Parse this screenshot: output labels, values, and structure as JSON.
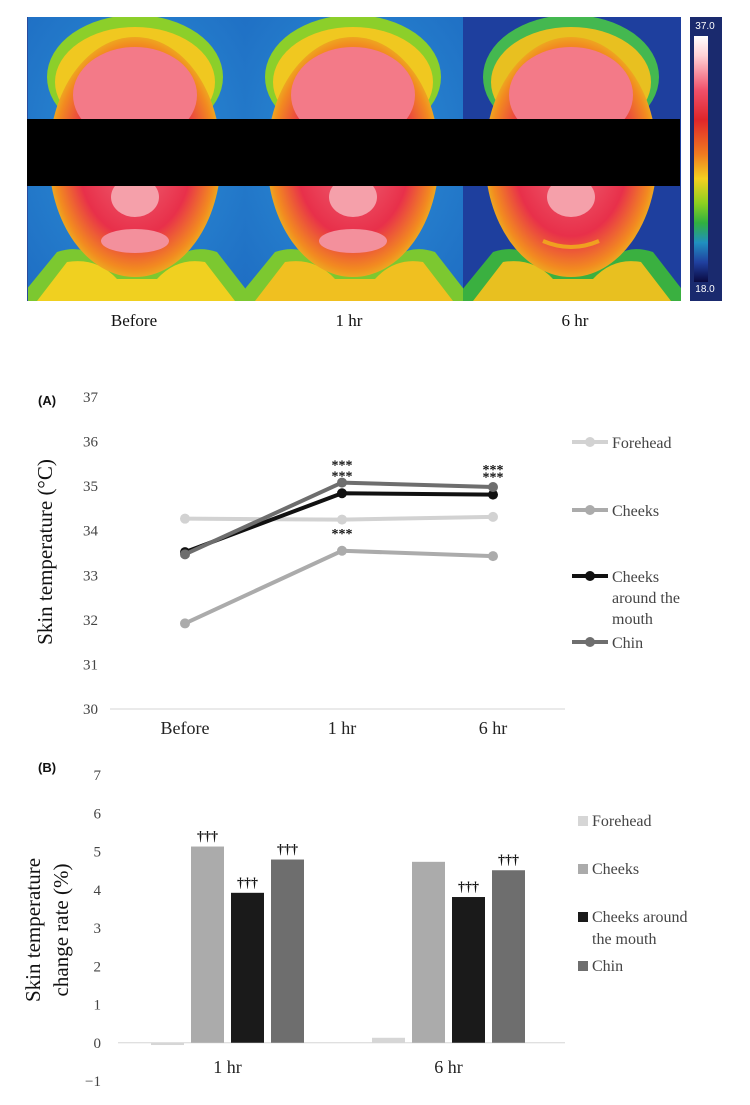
{
  "thermal_images": {
    "labels": [
      "Before",
      "1 hr",
      "6 hr"
    ],
    "scale_max": "37.0",
    "scale_min": "18.0"
  },
  "chart_data": [
    {
      "type": "line",
      "panel": "(A)",
      "ylabel": "Skin temperature (°C)",
      "categories": [
        "Before",
        "1 hr",
        "6 hr"
      ],
      "ylim": [
        30,
        37
      ],
      "yticks": [
        30,
        31,
        32,
        33,
        34,
        35,
        36,
        37
      ],
      "grid": false,
      "legend_position": "right",
      "series": [
        {
          "name": "Forehead",
          "values": [
            34.27,
            34.25,
            34.31
          ],
          "color": "#d2d2d2",
          "sig": [
            "",
            "",
            ""
          ]
        },
        {
          "name": "Cheeks",
          "values": [
            31.92,
            33.55,
            33.43
          ],
          "color": "#ababab",
          "sig": [
            "",
            "***",
            ""
          ]
        },
        {
          "name": "Cheeks around the mouth",
          "values": [
            33.52,
            34.84,
            34.81
          ],
          "color": "#111111",
          "sig": [
            "",
            "***",
            "***"
          ]
        },
        {
          "name": "Chin",
          "values": [
            33.47,
            35.08,
            34.98
          ],
          "color": "#6e6e6e",
          "sig": [
            "",
            "***",
            "***"
          ]
        }
      ]
    },
    {
      "type": "bar",
      "panel": "(B)",
      "ylabel": "Skin temperature change rate (%)",
      "categories": [
        "1 hr",
        "6 hr"
      ],
      "ylim": [
        -1,
        7
      ],
      "yticks": [
        -1,
        0,
        1,
        2,
        3,
        4,
        5,
        6,
        7
      ],
      "grid": false,
      "legend_position": "right",
      "series": [
        {
          "name": "Forehead",
          "values": [
            -0.06,
            0.13
          ],
          "color": "#d6d6d6",
          "sig": [
            "",
            ""
          ]
        },
        {
          "name": "Cheeks",
          "values": [
            5.13,
            4.73
          ],
          "color": "#ababab",
          "sig": [
            "†††",
            ""
          ]
        },
        {
          "name": "Cheeks around the mouth",
          "values": [
            3.92,
            3.81
          ],
          "color": "#1a1a1a",
          "sig": [
            "†††",
            "†††"
          ]
        },
        {
          "name": "Chin",
          "values": [
            4.79,
            4.51
          ],
          "color": "#6e6e6e",
          "sig": [
            "†††",
            "†††"
          ]
        }
      ]
    }
  ]
}
